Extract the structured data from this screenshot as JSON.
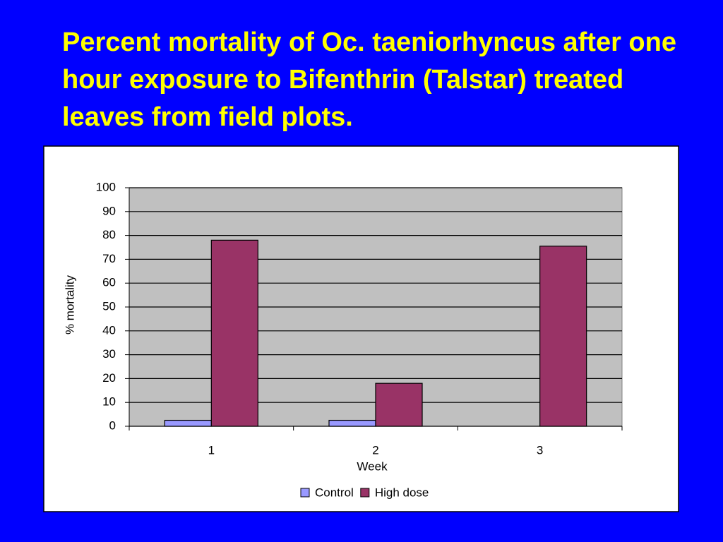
{
  "chart_data": {
    "type": "bar",
    "title": "Percent mortality of Oc. taeniorhyncus after one hour exposure to Bifenthrin (Talstar) treated leaves from field plots.",
    "x_label": "Week",
    "y_label": "% mortality",
    "categories": [
      "1",
      "2",
      "3"
    ],
    "series": [
      {
        "name": "Control",
        "color": "#9999ff",
        "values": [
          2.5,
          2.5,
          0
        ]
      },
      {
        "name": "High dose",
        "color": "#993366",
        "values": [
          78,
          18,
          75.5
        ]
      }
    ],
    "ylim": [
      0,
      100
    ],
    "yticks": [
      0,
      10,
      20,
      30,
      40,
      50,
      60,
      70,
      80,
      90,
      100
    ],
    "grid": true,
    "legend": "bottom"
  }
}
